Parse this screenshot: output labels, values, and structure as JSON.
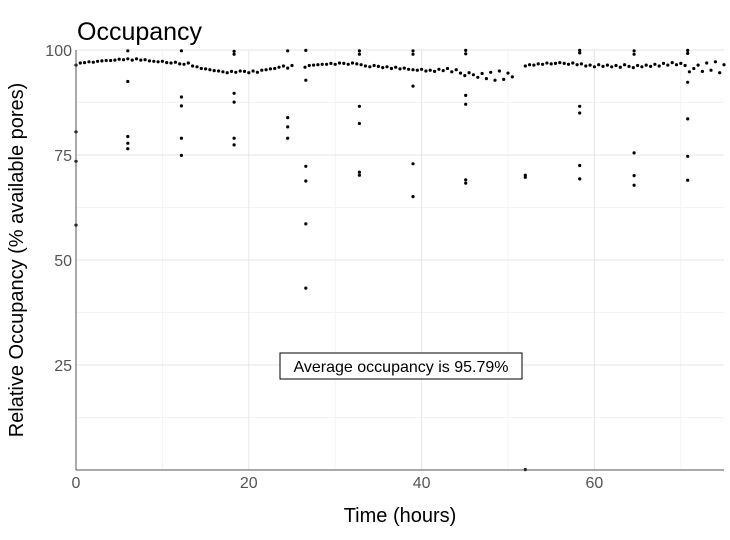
{
  "chart_data": {
    "type": "scatter",
    "title": "Occupancy",
    "xlabel": "Time (hours)",
    "ylabel": "Relative Occupancy (% available pores)",
    "xlim": [
      0,
      75
    ],
    "ylim": [
      0,
      100
    ],
    "x_ticks": [
      0,
      20,
      40,
      60
    ],
    "y_ticks": [
      25,
      50,
      75,
      100
    ],
    "grid": true,
    "annotation": "Average occupancy is 95.79%",
    "point_color": "#000000",
    "series": [
      {
        "values": [
          [
            0.0,
            96.4
          ],
          [
            0.5,
            96.9
          ],
          [
            1.0,
            97.0
          ],
          [
            1.5,
            97.2
          ],
          [
            2.0,
            97.1
          ],
          [
            2.5,
            97.3
          ],
          [
            3.0,
            97.4
          ],
          [
            3.5,
            97.5
          ],
          [
            4.0,
            97.5
          ],
          [
            4.5,
            97.6
          ],
          [
            5.0,
            97.8
          ],
          [
            5.5,
            97.7
          ],
          [
            6.0,
            97.9
          ],
          [
            6.5,
            97.6
          ],
          [
            7.0,
            97.9
          ],
          [
            7.5,
            97.6
          ],
          [
            8.0,
            97.7
          ],
          [
            8.5,
            97.4
          ],
          [
            9.0,
            97.3
          ],
          [
            9.5,
            97.2
          ],
          [
            10.0,
            97.3
          ],
          [
            10.5,
            97.0
          ],
          [
            11.0,
            96.9
          ],
          [
            11.5,
            97.1
          ],
          [
            12.0,
            96.7
          ],
          [
            12.5,
            96.6
          ],
          [
            13.0,
            96.9
          ],
          [
            13.5,
            96.2
          ],
          [
            14.0,
            96.0
          ],
          [
            14.5,
            95.6
          ],
          [
            15.0,
            95.5
          ],
          [
            15.5,
            95.3
          ],
          [
            16.0,
            95.1
          ],
          [
            16.5,
            95.0
          ],
          [
            17.0,
            94.8
          ],
          [
            17.5,
            94.6
          ],
          [
            18.0,
            94.9
          ],
          [
            18.5,
            94.7
          ],
          [
            19.0,
            95.0
          ],
          [
            19.5,
            94.9
          ],
          [
            20.0,
            94.6
          ],
          [
            20.5,
            95.0
          ],
          [
            21.0,
            94.7
          ],
          [
            21.5,
            95.2
          ],
          [
            22.0,
            95.3
          ],
          [
            22.5,
            95.5
          ],
          [
            23.0,
            95.6
          ],
          [
            23.5,
            95.9
          ],
          [
            24.0,
            96.2
          ],
          [
            24.5,
            95.7
          ],
          [
            25.0,
            96.3
          ],
          [
            26.5,
            95.9
          ],
          [
            27.0,
            96.3
          ],
          [
            27.5,
            96.4
          ],
          [
            28.0,
            96.5
          ],
          [
            28.5,
            96.6
          ],
          [
            29.0,
            96.6
          ],
          [
            29.5,
            96.8
          ],
          [
            30.0,
            96.6
          ],
          [
            30.5,
            96.9
          ],
          [
            31.0,
            96.8
          ],
          [
            31.5,
            96.6
          ],
          [
            32.0,
            96.9
          ],
          [
            32.5,
            96.7
          ],
          [
            33.0,
            96.5
          ],
          [
            33.5,
            96.2
          ],
          [
            34.0,
            96.0
          ],
          [
            34.5,
            96.3
          ],
          [
            35.0,
            96.1
          ],
          [
            35.5,
            95.8
          ],
          [
            36.0,
            96.0
          ],
          [
            36.5,
            95.6
          ],
          [
            37.0,
            95.9
          ],
          [
            37.5,
            95.5
          ],
          [
            38.0,
            95.7
          ],
          [
            38.5,
            95.4
          ],
          [
            39.0,
            95.3
          ],
          [
            39.5,
            95.2
          ],
          [
            40.0,
            95.4
          ],
          [
            40.5,
            95.0
          ],
          [
            41.0,
            95.2
          ],
          [
            41.5,
            94.9
          ],
          [
            42.0,
            95.4
          ],
          [
            42.5,
            95.1
          ],
          [
            43.0,
            95.6
          ],
          [
            43.5,
            94.8
          ],
          [
            44.0,
            95.3
          ],
          [
            44.5,
            94.5
          ],
          [
            45.0,
            93.9
          ],
          [
            45.5,
            94.6
          ],
          [
            46.0,
            94.1
          ],
          [
            46.5,
            93.5
          ],
          [
            47.0,
            94.4
          ],
          [
            47.5,
            93.2
          ],
          [
            48.0,
            94.7
          ],
          [
            48.5,
            92.8
          ],
          [
            49.0,
            95.0
          ],
          [
            49.5,
            93.0
          ],
          [
            50.0,
            94.5
          ],
          [
            50.5,
            93.6
          ],
          [
            52.0,
            96.2
          ],
          [
            52.5,
            96.5
          ],
          [
            53.0,
            96.4
          ],
          [
            53.5,
            96.7
          ],
          [
            54.0,
            96.6
          ],
          [
            54.5,
            96.9
          ],
          [
            55.0,
            96.7
          ],
          [
            55.5,
            96.8
          ],
          [
            56.0,
            97.0
          ],
          [
            56.5,
            96.8
          ],
          [
            57.0,
            96.6
          ],
          [
            57.5,
            96.9
          ],
          [
            58.0,
            96.5
          ],
          [
            58.5,
            96.7
          ],
          [
            59.0,
            96.2
          ],
          [
            59.5,
            96.4
          ],
          [
            60.0,
            96.0
          ],
          [
            60.5,
            96.5
          ],
          [
            61.0,
            96.1
          ],
          [
            61.5,
            96.4
          ],
          [
            62.0,
            96.0
          ],
          [
            62.5,
            96.3
          ],
          [
            63.0,
            95.9
          ],
          [
            63.5,
            96.5
          ],
          [
            64.0,
            96.1
          ],
          [
            64.5,
            95.8
          ],
          [
            65.0,
            96.3
          ],
          [
            65.5,
            96.0
          ],
          [
            66.0,
            96.4
          ],
          [
            66.5,
            96.1
          ],
          [
            67.0,
            96.6
          ],
          [
            67.5,
            96.2
          ],
          [
            68.0,
            96.8
          ],
          [
            68.5,
            96.4
          ],
          [
            69.0,
            97.0
          ],
          [
            69.5,
            96.5
          ],
          [
            70.0,
            96.8
          ],
          [
            70.5,
            96.3
          ],
          [
            71.0,
            94.8
          ],
          [
            71.5,
            95.6
          ],
          [
            72.0,
            96.4
          ],
          [
            72.5,
            94.9
          ],
          [
            73.0,
            96.9
          ],
          [
            73.5,
            95.2
          ],
          [
            74.0,
            97.2
          ],
          [
            74.5,
            94.6
          ],
          [
            75.0,
            96.5
          ]
        ]
      },
      {
        "values": [
          [
            0.0,
            80.5
          ],
          [
            0.0,
            73.5
          ],
          [
            0.0,
            58.3
          ],
          [
            6.0,
            99.8
          ],
          [
            6.0,
            92.5
          ],
          [
            6.0,
            79.4
          ],
          [
            6.0,
            77.8
          ],
          [
            6.0,
            76.5
          ],
          [
            12.2,
            99.8
          ],
          [
            12.2,
            88.8
          ],
          [
            12.2,
            86.7
          ],
          [
            12.2,
            79.0
          ],
          [
            12.2,
            74.9
          ],
          [
            18.3,
            99.7
          ],
          [
            18.3,
            99.0
          ],
          [
            18.3,
            89.7
          ],
          [
            18.3,
            87.6
          ],
          [
            18.3,
            79.0
          ],
          [
            18.3,
            77.4
          ],
          [
            24.5,
            99.8
          ],
          [
            24.5,
            83.9
          ],
          [
            24.5,
            81.7
          ],
          [
            24.5,
            79.0
          ],
          [
            26.6,
            99.9
          ],
          [
            26.6,
            92.8
          ],
          [
            26.6,
            72.3
          ],
          [
            26.6,
            68.8
          ],
          [
            26.6,
            58.6
          ],
          [
            26.6,
            43.3
          ],
          [
            32.8,
            99.8
          ],
          [
            32.8,
            99.0
          ],
          [
            32.8,
            86.6
          ],
          [
            32.8,
            82.5
          ],
          [
            32.8,
            70.9
          ],
          [
            32.8,
            70.2
          ],
          [
            39.0,
            99.8
          ],
          [
            39.0,
            99.0
          ],
          [
            39.0,
            91.4
          ],
          [
            39.0,
            72.9
          ],
          [
            39.0,
            65.1
          ],
          [
            45.1,
            99.9
          ],
          [
            45.1,
            99.1
          ],
          [
            45.1,
            89.2
          ],
          [
            45.1,
            87.1
          ],
          [
            45.1,
            69.1
          ],
          [
            45.1,
            68.3
          ],
          [
            52.0,
            70.2
          ],
          [
            52.0,
            69.7
          ],
          [
            52.0,
            0.1
          ],
          [
            58.3,
            99.9
          ],
          [
            58.3,
            99.3
          ],
          [
            58.3,
            86.6
          ],
          [
            58.3,
            85.0
          ],
          [
            58.3,
            72.5
          ],
          [
            58.3,
            69.3
          ],
          [
            64.6,
            99.8
          ],
          [
            64.6,
            99.0
          ],
          [
            64.6,
            75.5
          ],
          [
            64.6,
            70.1
          ],
          [
            64.6,
            67.8
          ],
          [
            70.8,
            99.9
          ],
          [
            70.8,
            99.2
          ],
          [
            70.8,
            92.3
          ],
          [
            70.8,
            83.6
          ],
          [
            70.8,
            74.7
          ],
          [
            70.8,
            69.0
          ]
        ]
      }
    ]
  }
}
